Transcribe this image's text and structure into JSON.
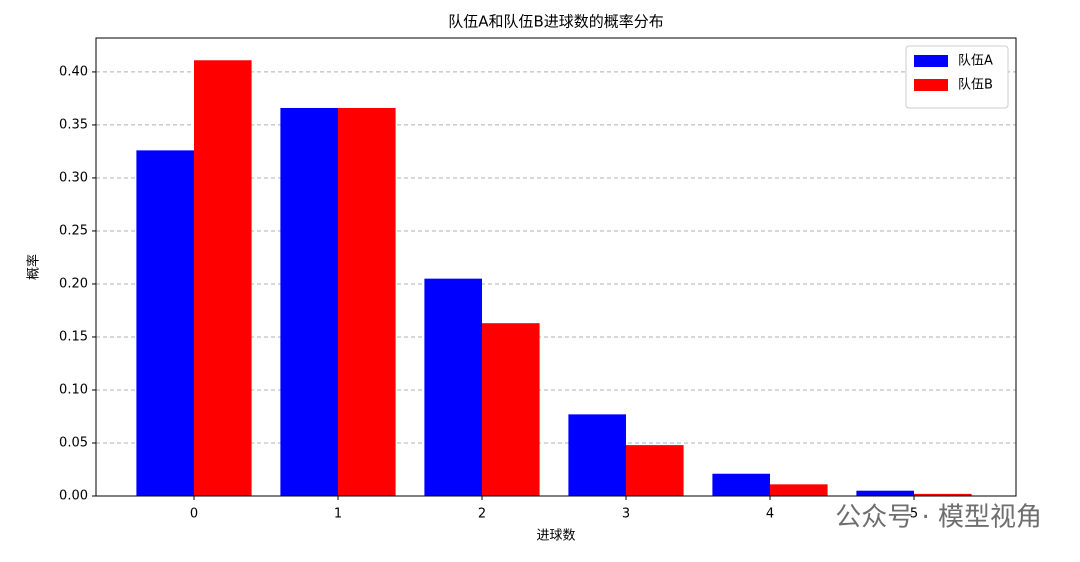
{
  "chart_data": {
    "type": "bar",
    "title": "队伍A和队伍B进球数的概率分布",
    "x_label": "进球数",
    "y_label": "概率",
    "categories": [
      "0",
      "1",
      "2",
      "3",
      "4",
      "5"
    ],
    "series": [
      {
        "name": "队伍A",
        "color": "#0000ff",
        "values": [
          0.326,
          0.366,
          0.205,
          0.077,
          0.021,
          0.005
        ]
      },
      {
        "name": "队伍B",
        "color": "#ff0000",
        "values": [
          0.411,
          0.366,
          0.163,
          0.048,
          0.011,
          0.002
        ]
      }
    ],
    "ylim": [
      0,
      0.432
    ],
    "yticks": [
      {
        "value": 0,
        "label": "0.00"
      },
      {
        "value": 0.05,
        "label": "0.05"
      },
      {
        "value": 0.1,
        "label": "0.10"
      },
      {
        "value": 0.15,
        "label": "0.15"
      },
      {
        "value": 0.2,
        "label": "0.20"
      },
      {
        "value": 0.25,
        "label": "0.25"
      },
      {
        "value": 0.3,
        "label": "0.30"
      },
      {
        "value": 0.35,
        "label": "0.35"
      },
      {
        "value": 0.4,
        "label": "0.40"
      }
    ],
    "grid": true,
    "legend": "upper right",
    "watermark": "公众号 · 模型视角"
  }
}
